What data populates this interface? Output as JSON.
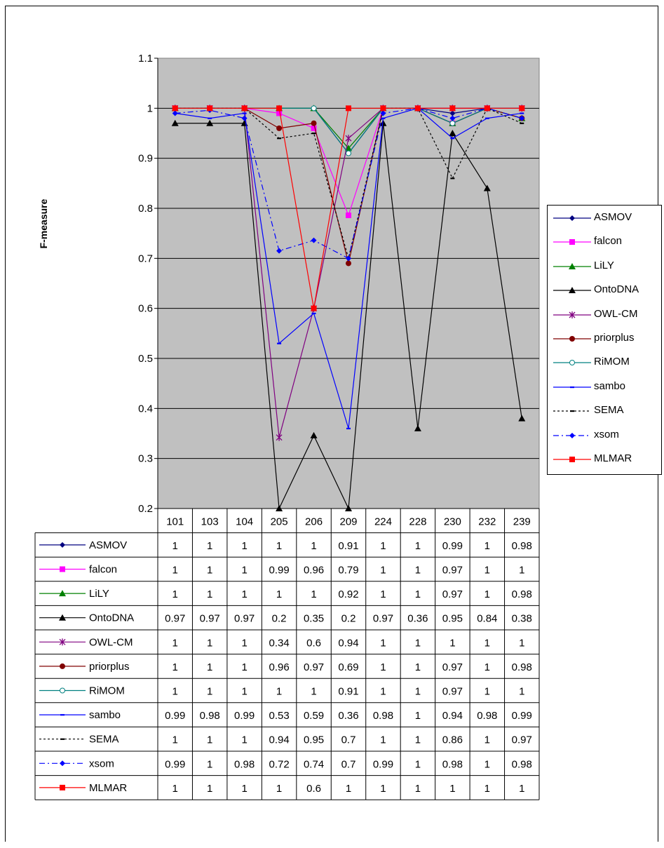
{
  "chart_data": {
    "type": "line",
    "title": "",
    "xlabel": "",
    "ylabel": "F-measure",
    "ylim": [
      0.2,
      1.1
    ],
    "yticks": [
      "0.2",
      "0.3",
      "0.4",
      "0.5",
      "0.6",
      "0.7",
      "0.8",
      "0.9",
      "1",
      "1.1"
    ],
    "grid": true,
    "legend_position": "right",
    "categories": [
      "101",
      "103",
      "104",
      "205",
      "206",
      "209",
      "224",
      "228",
      "230",
      "232",
      "239"
    ],
    "series": [
      {
        "name": "ASMOV",
        "color": "#000080",
        "marker": "diamond",
        "dash": "solid",
        "values": [
          1,
          1,
          1,
          1,
          1,
          0.91,
          1,
          1,
          0.99,
          1,
          0.98
        ],
        "labels": [
          "1",
          "1",
          "1",
          "1",
          "1",
          "0.91",
          "1",
          "1",
          "0.99",
          "1",
          "0.98"
        ]
      },
      {
        "name": "falcon",
        "color": "#ff00ff",
        "marker": "square",
        "dash": "solid",
        "values": [
          1,
          1,
          1,
          0.99,
          0.96,
          0.786,
          1,
          1,
          0.97,
          1,
          1
        ],
        "labels": [
          "1",
          "1",
          "1",
          "0.99",
          "0.96",
          "0.79",
          "1",
          "1",
          "0.97",
          "1",
          "1"
        ]
      },
      {
        "name": "LiLY",
        "color": "#008000",
        "marker": "triangle",
        "dash": "solid",
        "values": [
          1,
          1,
          1,
          1,
          1,
          0.92,
          1,
          1,
          0.97,
          1,
          0.98
        ],
        "labels": [
          "1",
          "1",
          "1",
          "1",
          "1",
          "0.92",
          "1",
          "1",
          "0.97",
          "1",
          "0.98"
        ]
      },
      {
        "name": "OntoDNA",
        "color": "#000000",
        "marker": "triangle",
        "dash": "solid",
        "values": [
          0.97,
          0.97,
          0.97,
          0.2,
          0.346,
          0.2,
          0.97,
          0.36,
          0.95,
          0.84,
          0.38
        ],
        "labels": [
          "0.97",
          "0.97",
          "0.97",
          "0.2",
          "0.35",
          "0.2",
          "0.97",
          "0.36",
          "0.95",
          "0.84",
          "0.38"
        ]
      },
      {
        "name": "OWL-CM",
        "color": "#800080",
        "marker": "star",
        "dash": "solid",
        "values": [
          1,
          1,
          1,
          0.342,
          0.6,
          0.94,
          1,
          1,
          1,
          1,
          1
        ],
        "labels": [
          "1",
          "1",
          "1",
          "0.34",
          "0.6",
          "0.94",
          "1",
          "1",
          "1",
          "1",
          "1"
        ]
      },
      {
        "name": "priorplus",
        "color": "#800000",
        "marker": "circle",
        "dash": "solid",
        "values": [
          1,
          1,
          1,
          0.96,
          0.97,
          0.69,
          1,
          1,
          0.97,
          1,
          0.98
        ],
        "labels": [
          "1",
          "1",
          "1",
          "0.96",
          "0.97",
          "0.69",
          "1",
          "1",
          "0.97",
          "1",
          "0.98"
        ]
      },
      {
        "name": "RiMOM",
        "color": "#008080",
        "marker": "circle-open",
        "dash": "solid",
        "values": [
          1,
          1,
          1,
          1,
          1,
          0.91,
          1,
          1,
          0.97,
          1,
          1
        ],
        "labels": [
          "1",
          "1",
          "1",
          "1",
          "1",
          "0.91",
          "1",
          "1",
          "0.97",
          "1",
          "1"
        ]
      },
      {
        "name": "sambo",
        "color": "#0000ff",
        "marker": "dash",
        "dash": "solid",
        "values": [
          0.99,
          0.98,
          0.99,
          0.53,
          0.59,
          0.36,
          0.98,
          1,
          0.94,
          0.98,
          0.99
        ],
        "labels": [
          "0.99",
          "0.98",
          "0.99",
          "0.53",
          "0.59",
          "0.36",
          "0.98",
          "1",
          "0.94",
          "0.98",
          "0.99"
        ]
      },
      {
        "name": "SEMA",
        "color": "#000000",
        "marker": "dash",
        "dash": "dotted",
        "values": [
          1,
          1,
          1,
          0.94,
          0.95,
          0.7,
          1,
          1,
          0.86,
          1,
          0.97
        ],
        "labels": [
          "1",
          "1",
          "1",
          "0.94",
          "0.95",
          "0.7",
          "1",
          "1",
          "0.86",
          "1",
          "0.97"
        ]
      },
      {
        "name": "xsom",
        "color": "#0000ff",
        "marker": "diamond",
        "dash": "dashdot",
        "values": [
          0.99,
          0.996,
          0.98,
          0.715,
          0.736,
          0.7,
          0.99,
          1,
          0.98,
          1,
          0.98
        ],
        "labels": [
          "0.99",
          "1",
          "0.98",
          "0.72",
          "0.74",
          "0.7",
          "0.99",
          "1",
          "0.98",
          "1",
          "0.98"
        ]
      },
      {
        "name": "MLMAR",
        "color": "#ff0000",
        "marker": "square",
        "dash": "solid",
        "values": [
          1,
          1,
          1,
          1,
          0.6,
          1,
          1,
          1,
          1,
          1,
          1
        ],
        "labels": [
          "1",
          "1",
          "1",
          "1",
          "0.6",
          "1",
          "1",
          "1",
          "1",
          "1",
          "1"
        ]
      }
    ]
  }
}
